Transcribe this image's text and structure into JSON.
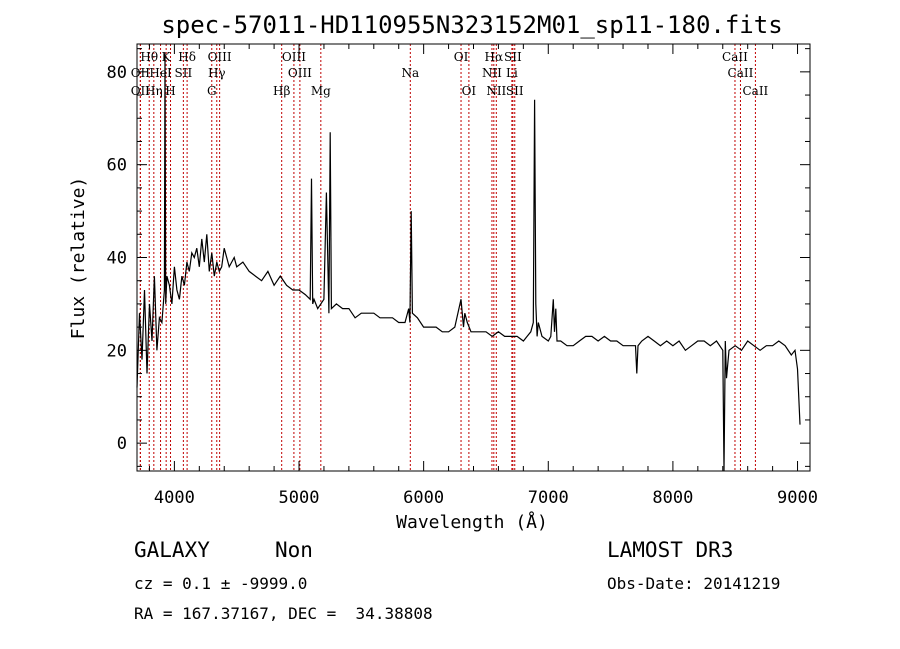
{
  "chart_data": {
    "type": "line",
    "title": "spec-57011-HD110955N323152M01_sp11-180.fits",
    "xlabel": "Wavelength (Å)",
    "ylabel": "Flux (relative)",
    "xlim": [
      3700,
      9100
    ],
    "ylim": [
      -6,
      86
    ],
    "xticks": [
      4000,
      5000,
      6000,
      7000,
      8000,
      9000
    ],
    "yticks": [
      0,
      20,
      40,
      60,
      80
    ],
    "series": [
      {
        "name": "spectrum",
        "x": [
          3700,
          3720,
          3740,
          3760,
          3780,
          3800,
          3820,
          3840,
          3860,
          3880,
          3900,
          3920,
          3925,
          3930,
          3940,
          3960,
          3980,
          4000,
          4020,
          4040,
          4060,
          4080,
          4100,
          4120,
          4140,
          4160,
          4180,
          4200,
          4220,
          4240,
          4260,
          4280,
          4300,
          4320,
          4340,
          4360,
          4380,
          4400,
          4420,
          4440,
          4460,
          4480,
          4500,
          4550,
          4600,
          4650,
          4700,
          4750,
          4800,
          4850,
          4900,
          4950,
          5000,
          5050,
          5090,
          5100,
          5110,
          5120,
          5150,
          5200,
          5220,
          5240,
          5250,
          5260,
          5300,
          5350,
          5400,
          5450,
          5500,
          5550,
          5600,
          5650,
          5700,
          5750,
          5800,
          5850,
          5880,
          5890,
          5900,
          5910,
          5950,
          6000,
          6050,
          6100,
          6150,
          6200,
          6250,
          6300,
          6320,
          6330,
          6350,
          6380,
          6400,
          6450,
          6500,
          6550,
          6600,
          6650,
          6700,
          6750,
          6800,
          6830,
          6860,
          6880,
          6890,
          6900,
          6910,
          6920,
          6950,
          7000,
          7020,
          7040,
          7050,
          7060,
          7070,
          7100,
          7150,
          7200,
          7250,
          7300,
          7350,
          7400,
          7450,
          7500,
          7550,
          7600,
          7650,
          7700,
          7710,
          7720,
          7750,
          7800,
          7850,
          7900,
          7950,
          8000,
          8050,
          8100,
          8150,
          8200,
          8250,
          8300,
          8350,
          8400,
          8410,
          8420,
          8430,
          8450,
          8500,
          8550,
          8600,
          8650,
          8700,
          8750,
          8800,
          8850,
          8900,
          8950,
          8980,
          9000,
          9020
        ],
        "values": [
          12,
          28,
          18,
          33,
          15,
          30,
          22,
          36,
          20,
          27,
          26,
          33,
          84,
          30,
          36,
          34,
          30,
          38,
          33,
          31,
          36,
          34,
          39,
          37,
          41,
          40,
          42,
          38,
          44,
          39,
          45,
          37,
          41,
          36,
          39,
          37,
          38,
          42,
          40,
          38,
          39,
          40,
          38,
          39,
          37,
          36,
          35,
          37,
          34,
          36,
          34,
          33,
          33,
          32,
          31,
          57,
          30,
          31,
          29,
          31,
          54,
          28,
          67,
          29,
          30,
          29,
          29,
          27,
          28,
          28,
          28,
          27,
          27,
          27,
          26,
          26,
          29,
          26,
          50,
          28,
          27,
          25,
          25,
          25,
          24,
          24,
          25,
          31,
          25,
          28,
          26,
          24,
          24,
          24,
          24,
          23,
          24,
          23,
          23,
          23,
          22,
          23,
          24,
          26,
          74,
          30,
          23,
          26,
          23,
          22,
          23,
          31,
          24,
          29,
          22,
          22,
          21,
          21,
          22,
          23,
          23,
          22,
          23,
          22,
          22,
          21,
          21,
          21,
          15,
          21,
          22,
          23,
          22,
          21,
          22,
          21,
          22,
          20,
          21,
          22,
          22,
          21,
          22,
          20,
          -6,
          22,
          14,
          20,
          21,
          20,
          22,
          21,
          20,
          21,
          21,
          22,
          21,
          19,
          20,
          16,
          4
        ]
      }
    ],
    "lines": [
      {
        "wl": 3727,
        "label": "OII",
        "row": 2
      },
      {
        "wl": 3727,
        "label": "OII",
        "row": 3
      },
      {
        "wl": 3798,
        "label": "Hθ",
        "row": 1
      },
      {
        "wl": 3835,
        "label": "Hη",
        "row": 3
      },
      {
        "wl": 3889,
        "label": "HeI",
        "row": 2
      },
      {
        "wl": 3934,
        "label": "K",
        "row": 1
      },
      {
        "wl": 3969,
        "label": "H",
        "row": 3
      },
      {
        "wl": 4072,
        "label": "SII",
        "row": 2
      },
      {
        "wl": 4102,
        "label": "Hδ",
        "row": 1
      },
      {
        "wl": 4300,
        "label": "G",
        "row": 3
      },
      {
        "wl": 4340,
        "label": "Hγ",
        "row": 2
      },
      {
        "wl": 4363,
        "label": "OIII",
        "row": 1
      },
      {
        "wl": 4861,
        "label": "Hβ",
        "row": 3
      },
      {
        "wl": 4959,
        "label": "OIII",
        "row": 1
      },
      {
        "wl": 5007,
        "label": "OIII",
        "row": 2
      },
      {
        "wl": 5175,
        "label": "Mg",
        "row": 3
      },
      {
        "wl": 5893,
        "label": "Na",
        "row": 2
      },
      {
        "wl": 6300,
        "label": "OI",
        "row": 1
      },
      {
        "wl": 6363,
        "label": "OI",
        "row": 3
      },
      {
        "wl": 6548,
        "label": "NII",
        "row": 2
      },
      {
        "wl": 6563,
        "label": "Hα",
        "row": 1
      },
      {
        "wl": 6583,
        "label": "NII",
        "row": 3
      },
      {
        "wl": 6708,
        "label": "Li",
        "row": 2
      },
      {
        "wl": 6716,
        "label": "SII",
        "row": 1
      },
      {
        "wl": 6731,
        "label": "SII",
        "row": 3
      },
      {
        "wl": 8498,
        "label": "CaII",
        "row": 1
      },
      {
        "wl": 8542,
        "label": "CaII",
        "row": 2
      },
      {
        "wl": 8662,
        "label": "CaII",
        "row": 3
      }
    ]
  },
  "info": {
    "class_label": "GALAXY",
    "subclass_label": "Non",
    "survey": "LAMOST DR3",
    "redshift": "cz = 0.1 ± -9999.0",
    "obs_date": "Obs-Date: 20141219",
    "coords": "RA = 167.37167, DEC =  34.38808"
  },
  "colors": {
    "line_marker": "#c00000",
    "spectrum": "#000000"
  }
}
